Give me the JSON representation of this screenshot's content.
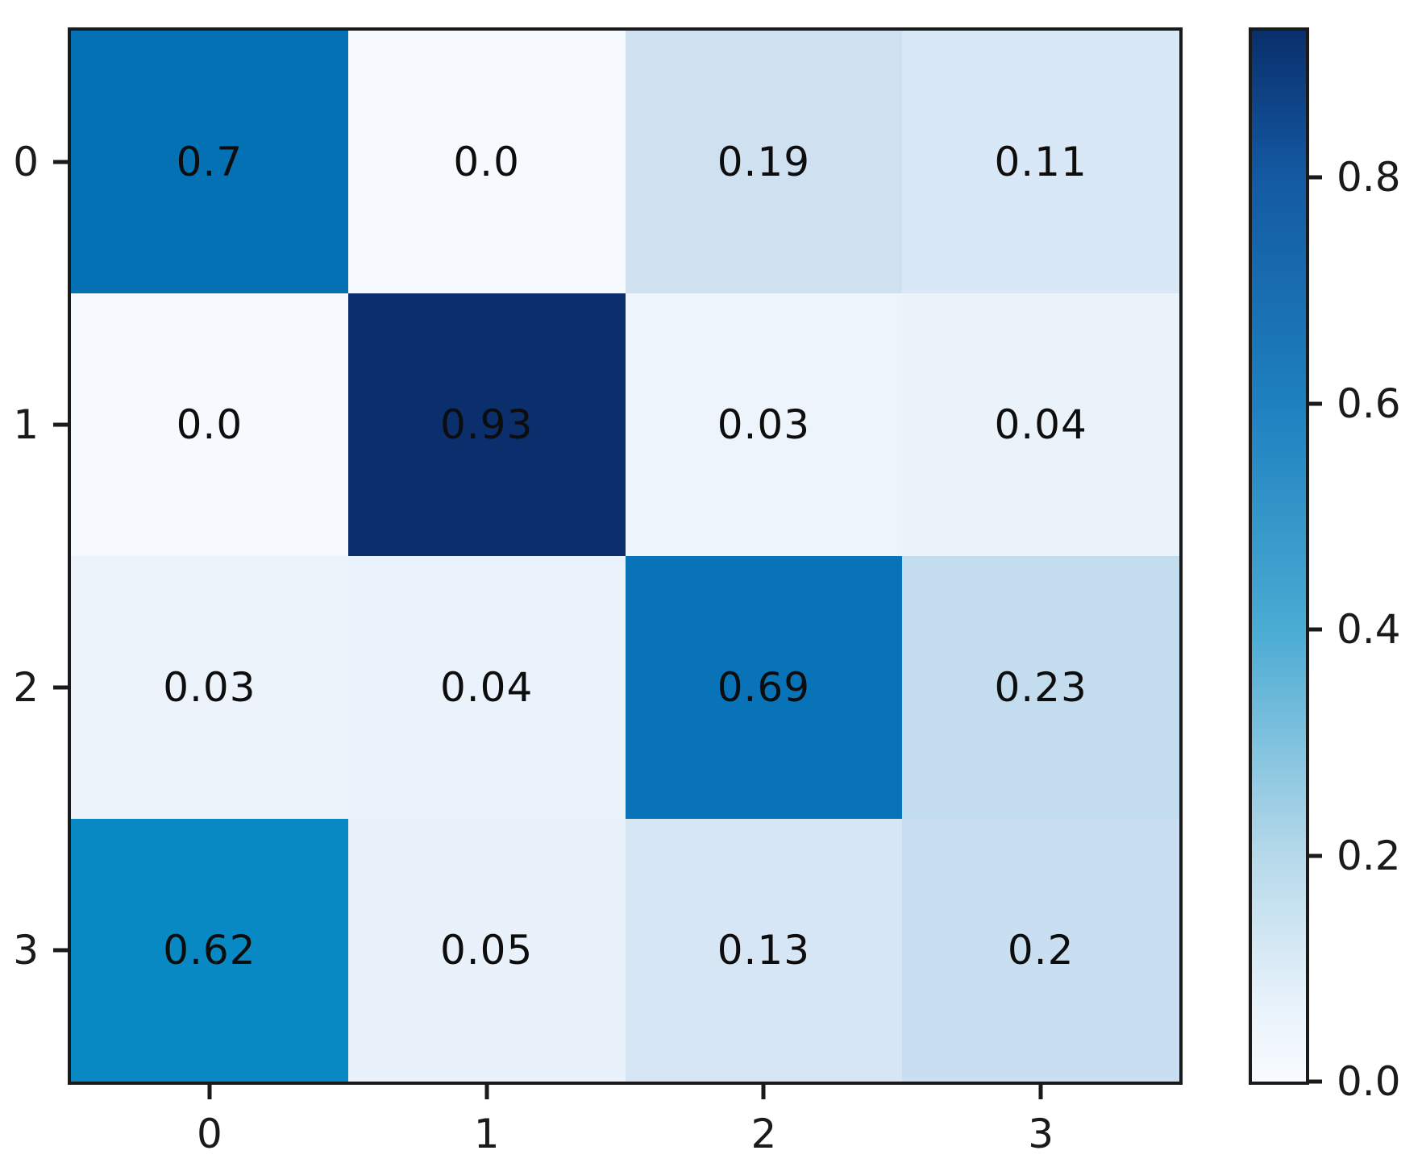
{
  "chart_data": {
    "type": "heatmap",
    "title": "",
    "xlabel": "",
    "ylabel": "",
    "x_tick_labels": [
      "0",
      "1",
      "2",
      "3"
    ],
    "y_tick_labels": [
      "0",
      "1",
      "2",
      "3"
    ],
    "matrix": [
      [
        0.7,
        0.0,
        0.19,
        0.11
      ],
      [
        0.0,
        0.93,
        0.03,
        0.04
      ],
      [
        0.03,
        0.04,
        0.69,
        0.23
      ],
      [
        0.62,
        0.05,
        0.13,
        0.2
      ]
    ],
    "cell_labels": [
      [
        "0.7",
        "0.0",
        "0.19",
        "0.11"
      ],
      [
        "0.0",
        "0.93",
        "0.03",
        "0.04"
      ],
      [
        "0.03",
        "0.04",
        "0.69",
        "0.23"
      ],
      [
        "0.62",
        "0.05",
        "0.13",
        "0.2"
      ]
    ],
    "cell_colors": [
      [
        "#0471b5",
        "#f6fafe",
        "#cfe0f1",
        "#d9e8f6"
      ],
      [
        "#f6fafe",
        "#0a2f6c",
        "#edf4fb",
        "#ebf3fa"
      ],
      [
        "#ecf3fb",
        "#eaf3fb",
        "#0873b7",
        "#c3dcee"
      ],
      [
        "#0989c3",
        "#e9f2fa",
        "#d7e6f4",
        "#c9def0"
      ]
    ],
    "colormap": "Blues",
    "vmin": 0.0,
    "vmax": 0.93,
    "grid": false,
    "colorbar": {
      "position": "right",
      "tick_labels": [
        "0.8",
        "0.6",
        "0.4",
        "0.2",
        "0.0"
      ],
      "tick_values": [
        0.8,
        0.6,
        0.4,
        0.2,
        0.0
      ],
      "gradient_stops": [
        {
          "pos": 0.0,
          "color": "#0a2f6c"
        },
        {
          "pos": 0.14,
          "color": "#135aa3"
        },
        {
          "pos": 0.355,
          "color": "#1e80bf"
        },
        {
          "pos": 0.57,
          "color": "#4aabd3"
        },
        {
          "pos": 0.785,
          "color": "#b6d9ea"
        },
        {
          "pos": 0.93,
          "color": "#e9f3fb"
        },
        {
          "pos": 1.0,
          "color": "#f7fbff"
        }
      ]
    }
  },
  "colors": {
    "background": "#ffffff",
    "axis_line": "#1a1a1a",
    "tick_text": "#1a1a1a",
    "cell_text": "#0d0d0d"
  }
}
